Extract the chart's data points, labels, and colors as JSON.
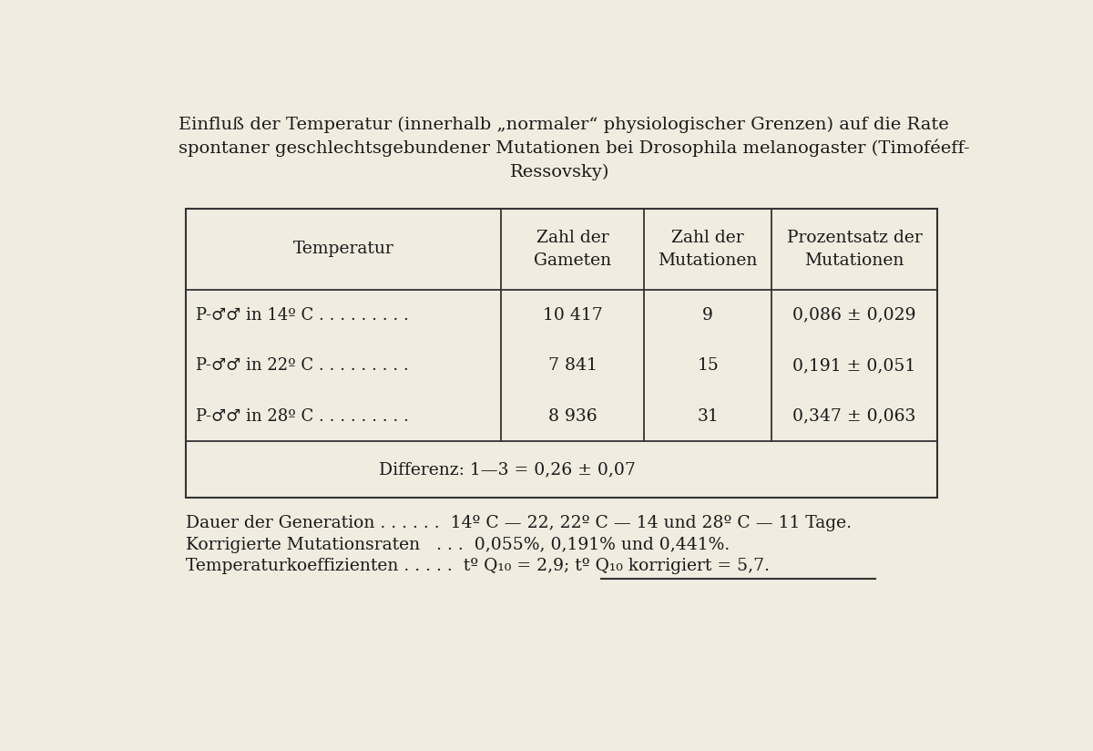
{
  "background_color": "#f0ece0",
  "title_line1": "Einfluß der Temperatur (innerhalb „normaler“ physiologischer Grenzen) auf die Rate",
  "title_line2": "spontaner geschlechtsgebundener Mutationen bei Drosophila melanogaster (Timoféeff-",
  "title_line3": "Ressovsky)",
  "col_headers_0": "Temperatur",
  "col_headers_1": "Zahl der\nGameten",
  "col_headers_2": "Zahl der\nMutationen",
  "col_headers_3": "Prozentsatz der\nMutationen",
  "row0_c0": "P-δδ in 14º C . . . . . . . . .",
  "row0_c1": "10 417",
  "row0_c2": "9",
  "row0_c3": "0,086 ± 0,029",
  "row1_c0": "P-δδ in 22º C . . . . . . . . .",
  "row1_c1": "7 841",
  "row1_c2": "15",
  "row1_c3": "0,191 ± 0,051",
  "row2_c0": "P-δδ in 28º C . . . . . . . . .",
  "row2_c1": "8 936",
  "row2_c2": "31",
  "row2_c3": "0,347 ± 0,063",
  "differenz": "Differenz: 1—3 = 0,26 ± 0,07",
  "footer1": "Dauer der Generation . . . . . .  14º C — 22, 22º C — 14 und 28º C — 11 Tage.",
  "footer2": "Korrigierte Mutationsraten   . . .  0,055%, 0,191% und 0,441%.",
  "footer3a": "Temperaturkoeffizienten . . . . .  tº Q",
  "footer3b": "10",
  "footer3c": " = 2,9; tº Q",
  "footer3d": "10 korrigiert",
  "footer3e": " = 5,7.",
  "text_color": "#1a1a1a",
  "line_color": "#333333",
  "fs_title": 14,
  "fs_table": 13.5,
  "fs_footer": 13.5
}
